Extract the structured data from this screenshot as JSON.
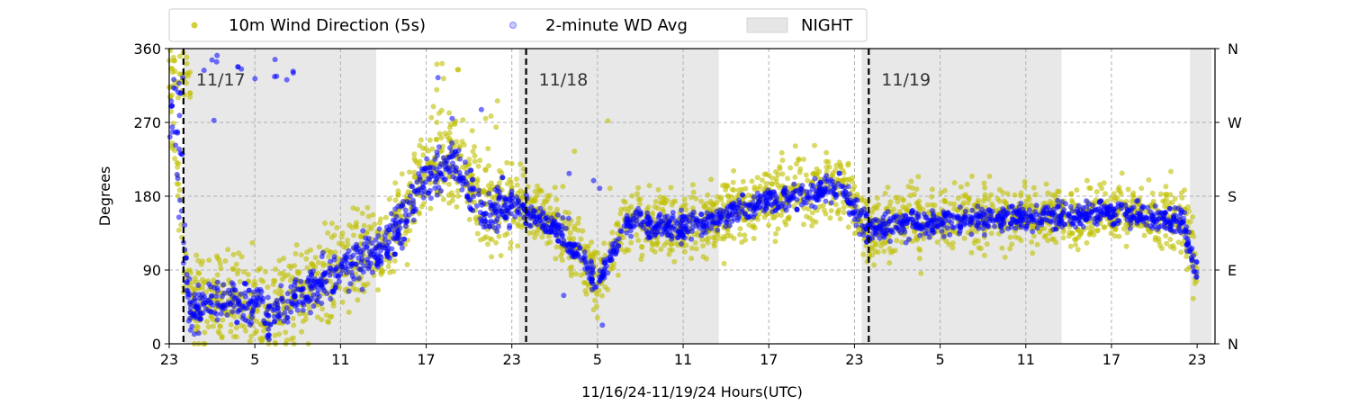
{
  "chart_data": {
    "type": "scatter",
    "title": "",
    "xlabel": "11/16/24-11/19/24  Hours(UTC)",
    "ylabel": "Degrees",
    "ylim": [
      0,
      360
    ],
    "xlim_hours_since_2024-11-16T23Z": [
      0,
      73
    ],
    "x_tick_labels": [
      "23",
      "5",
      "11",
      "17",
      "23",
      "5",
      "11",
      "17",
      "23",
      "5",
      "11",
      "17",
      "23"
    ],
    "y_ticks": [
      0,
      90,
      180,
      270,
      360
    ],
    "y2_tick_labels": [
      "N",
      "E",
      "S",
      "W",
      "N"
    ],
    "grid": true,
    "legend": {
      "placement": "top-left outside",
      "entries": [
        "10m Wind Direction (5s)",
        "2-minute WD Avg",
        "NIGHT"
      ]
    },
    "day_markers": [
      {
        "label": "11/17",
        "hour_utc": "00",
        "date": "2024-11-17"
      },
      {
        "label": "11/18",
        "hour_utc": "00",
        "date": "2024-11-18"
      },
      {
        "label": "11/19",
        "hour_utc": "00",
        "date": "2024-11-19"
      }
    ],
    "night_periods": [
      {
        "start": "2024-11-17T00:00Z",
        "end": "2024-11-17T13:30Z"
      },
      {
        "start": "2024-11-17T23:30Z",
        "end": "2024-11-18T13:30Z"
      },
      {
        "start": "2024-11-18T23:30Z",
        "end": "2024-11-19T13:30Z"
      },
      {
        "start": "2024-11-19T22:30Z",
        "end": "2024-11-20T00:00Z"
      }
    ],
    "series": [
      {
        "name": "10m Wind Direction (5s)",
        "color": "#bfbf00",
        "approx_profile_deg": [
          [
            "2024-11-16T23:00Z",
            300
          ],
          [
            "2024-11-17T00:30Z",
            40
          ],
          [
            "2024-11-17T04:00Z",
            60
          ],
          [
            "2024-11-17T06:00Z",
            40
          ],
          [
            "2024-11-17T08:00Z",
            60
          ],
          [
            "2024-11-17T11:00Z",
            95
          ],
          [
            "2024-11-17T14:00Z",
            120
          ],
          [
            "2024-11-17T17:00Z",
            210
          ],
          [
            "2024-11-17T19:00Z",
            230
          ],
          [
            "2024-11-17T21:00Z",
            165
          ],
          [
            "2024-11-17T23:00Z",
            175
          ],
          [
            "2024-11-18T02:00Z",
            150
          ],
          [
            "2024-11-18T05:00Z",
            80
          ],
          [
            "2024-11-18T07:00Z",
            150
          ],
          [
            "2024-11-18T11:00Z",
            140
          ],
          [
            "2024-11-18T17:00Z",
            175
          ],
          [
            "2024-11-18T22:00Z",
            195
          ],
          [
            "2024-11-19T00:00Z",
            140
          ],
          [
            "2024-11-19T06:00Z",
            155
          ],
          [
            "2024-11-19T12:00Z",
            155
          ],
          [
            "2024-11-19T18:00Z",
            160
          ],
          [
            "2024-11-19T22:00Z",
            150
          ],
          [
            "2024-11-19T23:00Z",
            85
          ]
        ]
      },
      {
        "name": "2-minute WD Avg",
        "color": "#0000ff",
        "approx_profile_deg": [
          [
            "2024-11-16T23:00Z",
            310
          ],
          [
            "2024-11-17T00:30Z",
            40
          ],
          [
            "2024-11-17T04:00Z",
            55
          ],
          [
            "2024-11-17T06:00Z",
            35
          ],
          [
            "2024-11-17T08:00Z",
            55
          ],
          [
            "2024-11-17T11:00Z",
            90
          ],
          [
            "2024-11-17T14:00Z",
            115
          ],
          [
            "2024-11-17T17:00Z",
            200
          ],
          [
            "2024-11-17T19:00Z",
            220
          ],
          [
            "2024-11-17T21:00Z",
            160
          ],
          [
            "2024-11-17T23:00Z",
            170
          ],
          [
            "2024-11-18T02:00Z",
            145
          ],
          [
            "2024-11-18T05:00Z",
            75
          ],
          [
            "2024-11-18T07:00Z",
            150
          ],
          [
            "2024-11-18T11:00Z",
            140
          ],
          [
            "2024-11-18T17:00Z",
            175
          ],
          [
            "2024-11-18T22:00Z",
            190
          ],
          [
            "2024-11-19T00:00Z",
            140
          ],
          [
            "2024-11-19T06:00Z",
            150
          ],
          [
            "2024-11-19T12:00Z",
            155
          ],
          [
            "2024-11-19T18:00Z",
            160
          ],
          [
            "2024-11-19T22:00Z",
            150
          ],
          [
            "2024-11-19T23:00Z",
            80
          ]
        ]
      }
    ]
  }
}
